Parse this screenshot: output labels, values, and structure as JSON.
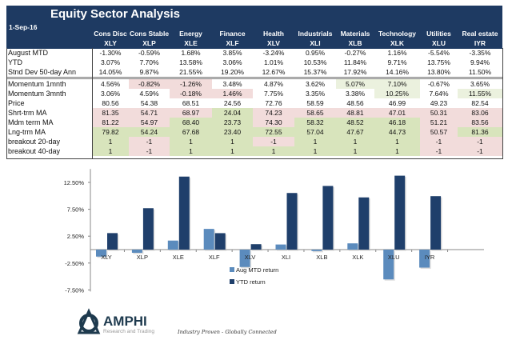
{
  "header": {
    "title": "Equity Sector  Analysis",
    "date": "1-Sep-16"
  },
  "columns": [
    {
      "name": "Cons Disc",
      "ticker": "XLY"
    },
    {
      "name": "Cons Stable",
      "ticker": "XLP"
    },
    {
      "name": "Energy",
      "ticker": "XLE"
    },
    {
      "name": "Finance",
      "ticker": "XLF"
    },
    {
      "name": "Health",
      "ticker": "XLV"
    },
    {
      "name": "Industrials",
      "ticker": "XLI"
    },
    {
      "name": "Materials",
      "ticker": "XLB"
    },
    {
      "name": "Technology",
      "ticker": "XLK"
    },
    {
      "name": "Utilities",
      "ticker": "XLU"
    },
    {
      "name": "Real estate",
      "ticker": "IYR"
    }
  ],
  "rows": [
    {
      "label": "August MTD",
      "values": [
        "-1.30%",
        "-0.59%",
        "1.68%",
        "3.85%",
        "-3.24%",
        "0.95%",
        "-0.27%",
        "1.16%",
        "-5.54%",
        "-3.35%"
      ],
      "highlight": [
        "",
        "",
        "",
        "",
        "",
        "",
        "",
        "",
        "",
        ""
      ]
    },
    {
      "label": "YTD",
      "values": [
        "3.07%",
        "7.70%",
        "13.58%",
        "3.06%",
        "1.01%",
        "10.53%",
        "11.84%",
        "9.71%",
        "13.75%",
        "9.94%"
      ],
      "highlight": [
        "",
        "",
        "",
        "",
        "",
        "",
        "",
        "",
        "",
        ""
      ]
    },
    {
      "label": "Stnd Dev 50-day Ann",
      "values": [
        "14.05%",
        "9.87%",
        "21.55%",
        "19.20%",
        "12.67%",
        "15.37%",
        "17.92%",
        "14.16%",
        "13.80%",
        "11.50%"
      ],
      "highlight": [
        "",
        "",
        "",
        "",
        "",
        "",
        "",
        "",
        "",
        ""
      ]
    },
    {
      "label": "Momentum 1mnth",
      "values": [
        "4.56%",
        "-0.82%",
        "-1.26%",
        "3.48%",
        "4.87%",
        "3.62%",
        "5.07%",
        "7.10%",
        "-0.67%",
        "3.65%"
      ],
      "highlight": [
        "",
        "neg",
        "neg",
        "",
        "",
        "",
        "lpos",
        "lpos",
        "",
        ""
      ]
    },
    {
      "label": "Momentum 3mnth",
      "values": [
        "3.06%",
        "4.59%",
        "-0.18%",
        "1.46%",
        "7.75%",
        "3.35%",
        "3.38%",
        "10.25%",
        "7.64%",
        "11.55%"
      ],
      "highlight": [
        "",
        "",
        "neg",
        "neg",
        "",
        "",
        "",
        "lpos",
        "",
        "lpos"
      ]
    },
    {
      "label": "Price",
      "values": [
        "80.56",
        "54.38",
        "68.51",
        "24.56",
        "72.76",
        "58.59",
        "48.56",
        "46.99",
        "49.23",
        "82.54"
      ],
      "highlight": [
        "",
        "",
        "",
        "",
        "",
        "",
        "",
        "",
        "",
        ""
      ]
    },
    {
      "label": "Shrt-trm MA",
      "values": [
        "81.35",
        "54.71",
        "68.97",
        "24.04",
        "74.23",
        "58.65",
        "48.81",
        "47.01",
        "50.31",
        "83.06"
      ],
      "highlight": [
        "neg",
        "neg",
        "neg",
        "pos",
        "neg",
        "neg",
        "neg",
        "neg",
        "neg",
        "neg"
      ]
    },
    {
      "label": "Mdm term MA",
      "values": [
        "81.22",
        "54.97",
        "68.40",
        "23.73",
        "74.30",
        "58.32",
        "48.52",
        "46.18",
        "51.21",
        "83.56"
      ],
      "highlight": [
        "neg",
        "neg",
        "pos",
        "pos",
        "neg",
        "pos",
        "pos",
        "pos",
        "neg",
        "neg"
      ]
    },
    {
      "label": "Lng-trm MA",
      "values": [
        "79.82",
        "54.24",
        "67.68",
        "23.40",
        "72.55",
        "57.04",
        "47.67",
        "44.73",
        "50.57",
        "81.36"
      ],
      "highlight": [
        "pos",
        "pos",
        "pos",
        "pos",
        "pos",
        "pos",
        "pos",
        "pos",
        "neg",
        "pos"
      ]
    },
    {
      "label": "breakout 20-day",
      "values": [
        "1",
        "-1",
        "1",
        "1",
        "-1",
        "1",
        "1",
        "1",
        "-1",
        "-1"
      ],
      "highlight": [
        "pos",
        "neg",
        "pos",
        "pos",
        "neg",
        "pos",
        "pos",
        "pos",
        "neg",
        "neg"
      ]
    },
    {
      "label": "breakout 40-day",
      "values": [
        "1",
        "-1",
        "1",
        "1",
        "1",
        "1",
        "1",
        "1",
        "-1",
        "-1"
      ],
      "highlight": [
        "pos",
        "neg",
        "pos",
        "pos",
        "pos",
        "pos",
        "pos",
        "pos",
        "neg",
        "neg"
      ]
    }
  ],
  "chart_data": {
    "type": "bar",
    "categories": [
      "XLY",
      "XLP",
      "XLE",
      "XLF",
      "XLV",
      "XLI",
      "XLB",
      "XLK",
      "XLU",
      "IYR"
    ],
    "series": [
      {
        "name": "Aug MTD return",
        "color": "#5b8bbd",
        "values": [
          -1.3,
          -0.59,
          1.68,
          3.85,
          -3.24,
          0.95,
          -0.27,
          1.16,
          -5.54,
          -3.35
        ]
      },
      {
        "name": "YTD return",
        "color": "#1f3f6b",
        "values": [
          3.07,
          7.7,
          13.58,
          3.06,
          1.01,
          10.53,
          11.84,
          9.71,
          13.75,
          9.94
        ]
      }
    ],
    "yticks": [
      "12.50%",
      "7.50%",
      "2.50%",
      "-2.50%",
      "-7.50%"
    ],
    "ytick_values": [
      12.5,
      7.5,
      2.5,
      -2.5,
      -7.5
    ],
    "ylim": [
      -7.5,
      15
    ],
    "legend": "center-bottom"
  },
  "footer": {
    "logo_text": "AMPHI",
    "logo_sub": "Research and Trading",
    "tagline": "Industry Proven - Globally Connected"
  },
  "colors": {
    "header_bg": "#1e3a62",
    "negative": "#f2dcdb",
    "positive": "#d8e4bc",
    "light_positive": "#ebf1de"
  }
}
